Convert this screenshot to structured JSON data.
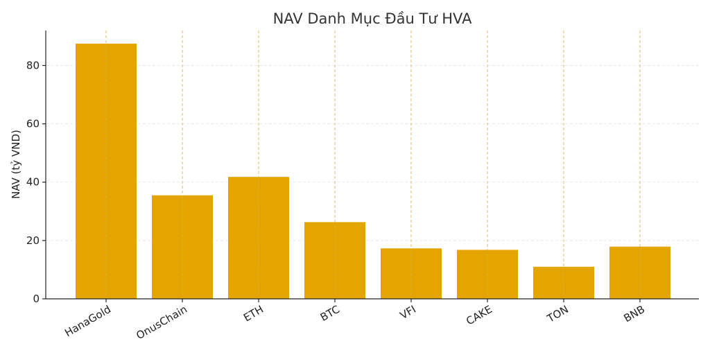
{
  "chart_data": {
    "type": "bar",
    "title": "NAV Danh Mục Đầu Tư HVA",
    "xlabel": "",
    "ylabel": "NAV (tỷ VND)",
    "categories": [
      "HanaGold",
      "OnusChain",
      "ETH",
      "BTC",
      "VFI",
      "CAKE",
      "TON",
      "BNB"
    ],
    "values": [
      87.5,
      35.5,
      41.8,
      26.3,
      17.3,
      16.8,
      11.0,
      17.9
    ],
    "ylim": [
      0,
      92
    ],
    "yticks": [
      0,
      20,
      40,
      60,
      80
    ],
    "bar_color": "#E5A500",
    "grid": true,
    "legend": "none"
  }
}
